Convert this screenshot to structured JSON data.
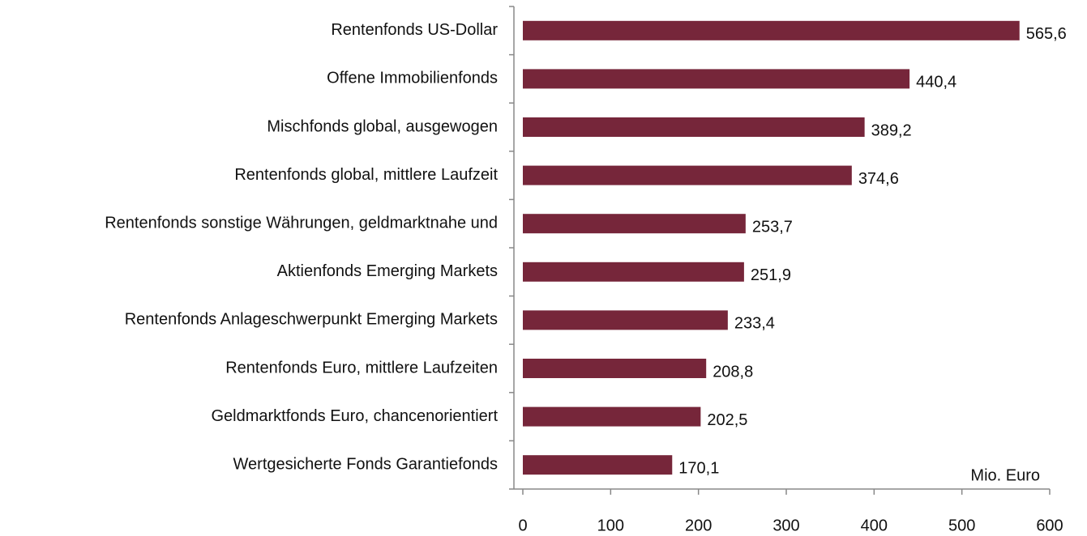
{
  "chart_data": {
    "type": "bar",
    "orientation": "horizontal",
    "categories": [
      "Rentenfonds US-Dollar",
      "Offene Immobilienfonds",
      "Mischfonds global, ausgewogen",
      "Rentenfonds global, mittlere Laufzeit",
      "Rentenfonds sonstige Währungen, geldmarktnahe und",
      "Aktienfonds Emerging Markets",
      "Rentenfonds Anlageschwerpunkt Emerging Markets",
      "Rentenfonds Euro, mittlere Laufzeiten",
      "Geldmarktfonds Euro, chancenorientiert",
      "Wertgesicherte Fonds Garantiefonds"
    ],
    "values": [
      565.6,
      440.4,
      389.2,
      374.6,
      253.7,
      251.9,
      233.4,
      208.8,
      202.5,
      170.1
    ],
    "value_labels": [
      "565,6",
      "440,4",
      "389,2",
      "374,6",
      "253,7",
      "251,9",
      "233,4",
      "208,8",
      "202,5",
      "170,1"
    ],
    "color": "#76263a",
    "xlim": [
      0,
      600
    ],
    "xticks": [
      0,
      100,
      200,
      300,
      400,
      500,
      600
    ],
    "annotation": "Mio. Euro"
  }
}
